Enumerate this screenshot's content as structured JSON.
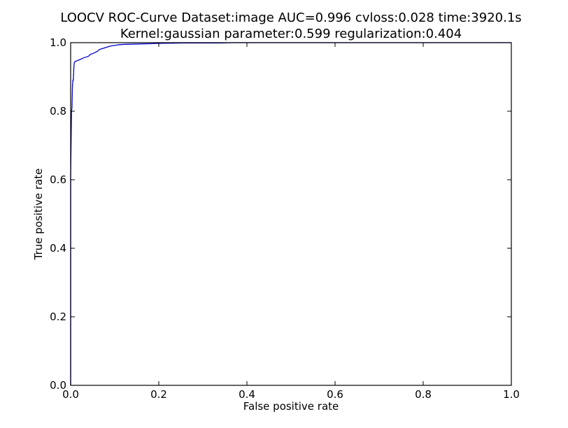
{
  "chart_data": {
    "type": "line",
    "title": "LOOCV ROC-Curve Dataset:image AUC=0.996 cvloss:0.028 time:3920.1s",
    "subtitle": "Kernel:gaussian parameter:0.599 regularization:0.404",
    "xlabel": "False positive rate",
    "ylabel": "True positive rate",
    "xlim": [
      0.0,
      1.0
    ],
    "ylim": [
      0.0,
      1.0
    ],
    "x_ticks": [
      "0.0",
      "0.2",
      "0.4",
      "0.6",
      "0.8",
      "1.0"
    ],
    "y_ticks": [
      "0.0",
      "0.2",
      "0.4",
      "0.6",
      "0.8",
      "1.0"
    ],
    "grid": false,
    "line_color": "#0000cc",
    "series": [
      {
        "x": [
          0.0,
          0.0,
          0.002,
          0.003,
          0.004,
          0.005,
          0.006,
          0.007,
          0.008,
          0.01,
          0.02,
          0.03,
          0.04,
          0.045,
          0.05,
          0.06,
          0.065,
          0.07,
          0.08,
          0.09,
          0.1,
          0.11,
          0.12,
          0.15,
          0.18,
          0.2,
          0.25,
          0.3,
          0.34,
          0.37,
          0.4,
          0.5,
          1.0
        ],
        "y": [
          0.0,
          0.61,
          0.8,
          0.81,
          0.87,
          0.89,
          0.89,
          0.92,
          0.94,
          0.945,
          0.95,
          0.956,
          0.96,
          0.966,
          0.968,
          0.974,
          0.98,
          0.982,
          0.986,
          0.99,
          0.992,
          0.994,
          0.995,
          0.996,
          0.997,
          0.998,
          0.999,
          0.999,
          0.999,
          1.0,
          1.0,
          1.0,
          1.0
        ]
      }
    ]
  }
}
